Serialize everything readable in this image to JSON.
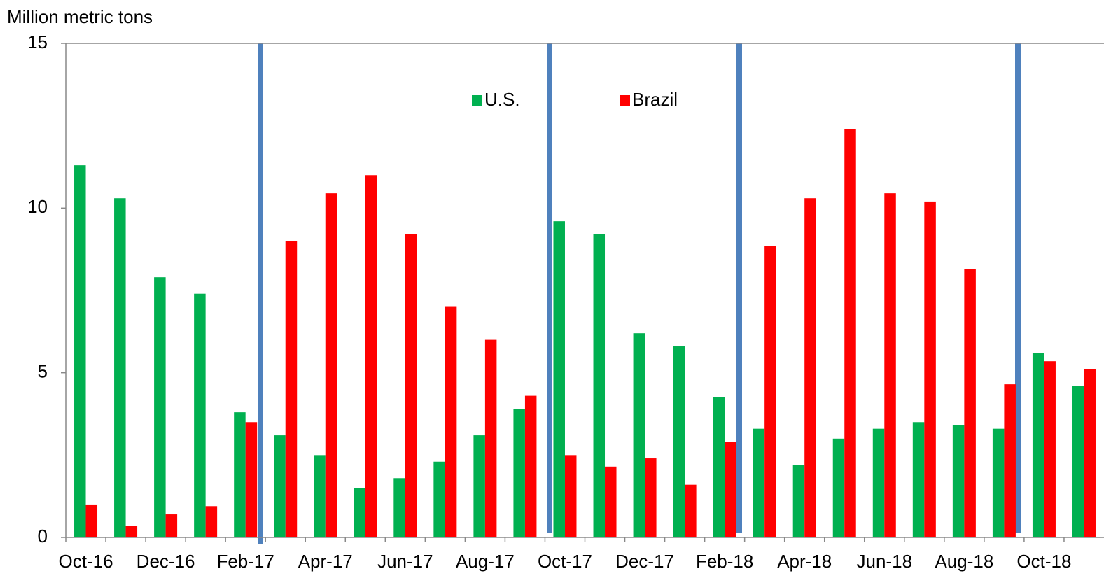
{
  "chart_data": {
    "type": "bar",
    "y_label": "Million metric tons",
    "categories": [
      "Oct-16",
      null,
      "Dec-16",
      null,
      "Feb-17",
      null,
      "Apr-17",
      null,
      "Jun-17",
      null,
      "Aug-17",
      null,
      "Oct-17",
      null,
      "Dec-17",
      null,
      "Feb-18",
      null,
      "Apr-18",
      null,
      "Jun-18",
      null,
      "Aug-18",
      null,
      "Oct-18",
      null
    ],
    "series": [
      {
        "name": "U.S.",
        "color": "#00b050",
        "values": [
          11.3,
          10.3,
          7.9,
          7.4,
          3.8,
          3.1,
          2.5,
          1.5,
          1.8,
          2.3,
          3.1,
          3.9,
          9.6,
          9.2,
          6.2,
          5.8,
          4.25,
          3.3,
          2.2,
          3.0,
          3.3,
          3.5,
          3.4,
          3.3,
          5.6,
          4.6
        ]
      },
      {
        "name": "Brazil",
        "color": "#ff0000",
        "values": [
          1.0,
          0.35,
          0.7,
          0.95,
          3.5,
          9.0,
          10.45,
          11.0,
          9.2,
          7.0,
          6.0,
          4.3,
          2.5,
          2.15,
          2.4,
          1.6,
          2.9,
          8.85,
          10.3,
          12.4,
          10.45,
          10.2,
          8.15,
          4.65,
          5.35,
          5.1
        ]
      }
    ],
    "ylim": [
      0,
      15
    ],
    "yticks": [
      0,
      5,
      10,
      15
    ]
  }
}
